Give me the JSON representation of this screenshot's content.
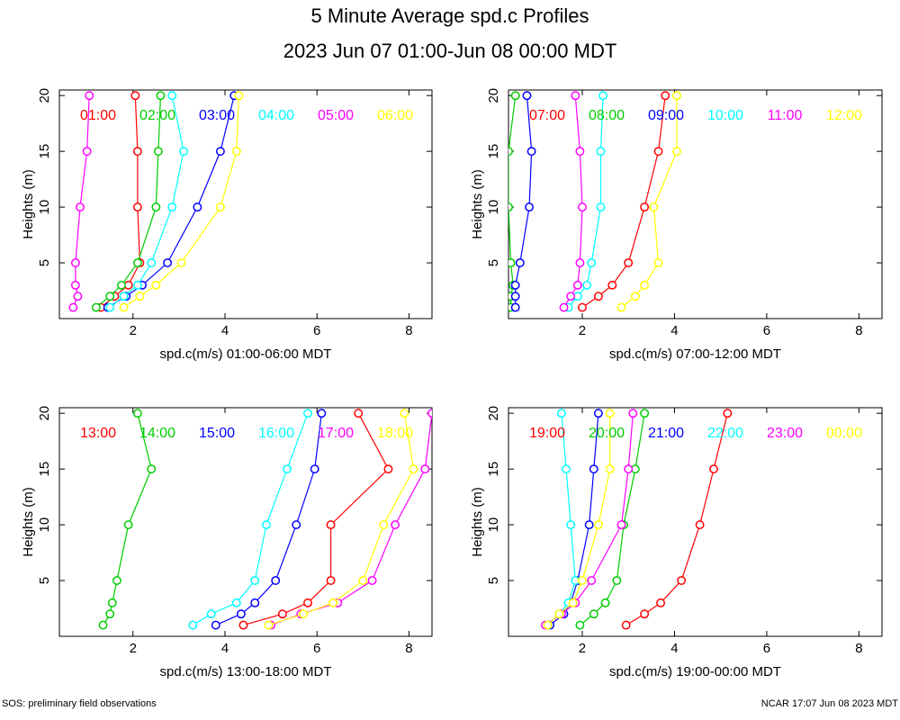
{
  "title": "5 Minute Average spd.c Profiles",
  "subtitle": "2023 Jun 07 01:00-Jun 08 00:00 MDT",
  "footer_left": "SOS: preliminary field observations",
  "footer_right": "NCAR 17:07 Jun 08 2023 MDT",
  "chart_data": [
    {
      "type": "line",
      "xlabel": "spd.c(m/s) 01:00-06:00 MDT",
      "ylabel": "Heights (m)",
      "xlim": [
        0.4,
        8.5
      ],
      "ylim": [
        0,
        20.5
      ],
      "xticks": [
        2,
        4,
        6,
        8
      ],
      "yticks": [
        5,
        10,
        15,
        20
      ],
      "heights": [
        1,
        2,
        3,
        5,
        10,
        15,
        20
      ],
      "series": [
        {
          "name": "01:00",
          "color": "#ff0000",
          "values": [
            1.3,
            1.6,
            1.9,
            2.15,
            2.1,
            2.1,
            2.05
          ]
        },
        {
          "name": "02:00",
          "color": "#00cc00",
          "values": [
            1.2,
            1.5,
            1.75,
            2.1,
            2.5,
            2.55,
            2.6
          ]
        },
        {
          "name": "03:00",
          "color": "#0000ff",
          "values": [
            1.45,
            1.85,
            2.2,
            2.75,
            3.4,
            3.9,
            4.2
          ]
        },
        {
          "name": "04:00",
          "color": "#00ffff",
          "values": [
            1.5,
            1.8,
            2.1,
            2.4,
            2.85,
            3.1,
            2.85
          ]
        },
        {
          "name": "05:00",
          "color": "#ff00ff",
          "values": [
            0.7,
            0.8,
            0.75,
            0.75,
            0.85,
            1.0,
            1.05
          ]
        },
        {
          "name": "06:00",
          "color": "#ffff00",
          "values": [
            1.8,
            2.15,
            2.5,
            3.05,
            3.9,
            4.25,
            4.3
          ]
        }
      ]
    },
    {
      "type": "line",
      "xlabel": "spd.c(m/s) 07:00-12:00 MDT",
      "ylabel": "Heights (m)",
      "xlim": [
        0.4,
        8.5
      ],
      "ylim": [
        0,
        20.5
      ],
      "xticks": [
        2,
        4,
        6,
        8
      ],
      "yticks": [
        5,
        10,
        15,
        20
      ],
      "heights": [
        1,
        2,
        3,
        5,
        10,
        15,
        20
      ],
      "series": [
        {
          "name": "07:00",
          "color": "#ff0000",
          "values": [
            2.0,
            2.35,
            2.65,
            3.0,
            3.35,
            3.65,
            3.8
          ]
        },
        {
          "name": "08:00",
          "color": "#00cc00",
          "values": [
            0.45,
            0.45,
            0.5,
            0.45,
            0.4,
            0.4,
            0.55
          ]
        },
        {
          "name": "09:00",
          "color": "#0000ff",
          "values": [
            0.55,
            0.55,
            0.55,
            0.65,
            0.85,
            0.9,
            0.8
          ]
        },
        {
          "name": "10:00",
          "color": "#00ffff",
          "values": [
            1.7,
            1.9,
            2.1,
            2.2,
            2.4,
            2.4,
            2.45
          ]
        },
        {
          "name": "11:00",
          "color": "#ff00ff",
          "values": [
            1.6,
            1.75,
            1.9,
            1.95,
            2.0,
            1.95,
            1.85
          ]
        },
        {
          "name": "12:00",
          "color": "#ffff00",
          "values": [
            2.85,
            3.15,
            3.35,
            3.65,
            3.55,
            4.05,
            4.05
          ]
        }
      ]
    },
    {
      "type": "line",
      "xlabel": "spd.c(m/s) 13:00-18:00 MDT",
      "ylabel": "Heights (m)",
      "xlim": [
        0.4,
        8.5
      ],
      "ylim": [
        0,
        20.5
      ],
      "xticks": [
        2,
        4,
        6,
        8
      ],
      "yticks": [
        5,
        10,
        15,
        20
      ],
      "heights": [
        1,
        2,
        3,
        5,
        10,
        15,
        20
      ],
      "series": [
        {
          "name": "13:00",
          "color": "#ff0000",
          "values": [
            4.4,
            5.25,
            5.8,
            6.3,
            6.3,
            7.55,
            6.9
          ]
        },
        {
          "name": "14:00",
          "color": "#00cc00",
          "values": [
            1.35,
            1.5,
            1.55,
            1.65,
            1.9,
            2.4,
            2.1
          ]
        },
        {
          "name": "15:00",
          "color": "#0000ff",
          "values": [
            3.8,
            4.35,
            4.65,
            5.1,
            5.55,
            5.95,
            6.1
          ]
        },
        {
          "name": "16:00",
          "color": "#00ffff",
          "values": [
            3.3,
            3.7,
            4.25,
            4.65,
            4.9,
            5.35,
            5.8
          ]
        },
        {
          "name": "17:00",
          "color": "#ff00ff",
          "values": [
            5.0,
            5.65,
            6.45,
            7.2,
            7.7,
            8.35,
            8.5
          ]
        },
        {
          "name": "18:00",
          "color": "#ffff00",
          "values": [
            4.95,
            5.7,
            6.35,
            7.0,
            7.45,
            8.1,
            7.9
          ]
        }
      ]
    },
    {
      "type": "line",
      "xlabel": "spd.c(m/s) 19:00-00:00 MDT",
      "ylabel": "Heights (m)",
      "xlim": [
        0.4,
        8.5
      ],
      "ylim": [
        0,
        20.5
      ],
      "xticks": [
        2,
        4,
        6,
        8
      ],
      "yticks": [
        5,
        10,
        15,
        20
      ],
      "heights": [
        1,
        2,
        3,
        5,
        10,
        15,
        20
      ],
      "series": [
        {
          "name": "19:00",
          "color": "#ff0000",
          "values": [
            2.95,
            3.35,
            3.7,
            4.15,
            4.55,
            4.85,
            5.15
          ]
        },
        {
          "name": "20:00",
          "color": "#00cc00",
          "values": [
            1.95,
            2.25,
            2.5,
            2.75,
            2.9,
            3.15,
            3.35
          ]
        },
        {
          "name": "21:00",
          "color": "#0000ff",
          "values": [
            1.3,
            1.6,
            1.75,
            1.9,
            2.15,
            2.25,
            2.35
          ]
        },
        {
          "name": "22:00",
          "color": "#00ffff",
          "values": [
            1.25,
            1.5,
            1.7,
            1.85,
            1.75,
            1.65,
            1.55
          ]
        },
        {
          "name": "23:00",
          "color": "#ff00ff",
          "values": [
            1.2,
            1.55,
            1.85,
            2.2,
            2.85,
            3.0,
            3.1
          ]
        },
        {
          "name": "00:00",
          "color": "#ffff00",
          "values": [
            1.25,
            1.5,
            1.8,
            2.0,
            2.35,
            2.6,
            2.6
          ]
        }
      ]
    }
  ]
}
